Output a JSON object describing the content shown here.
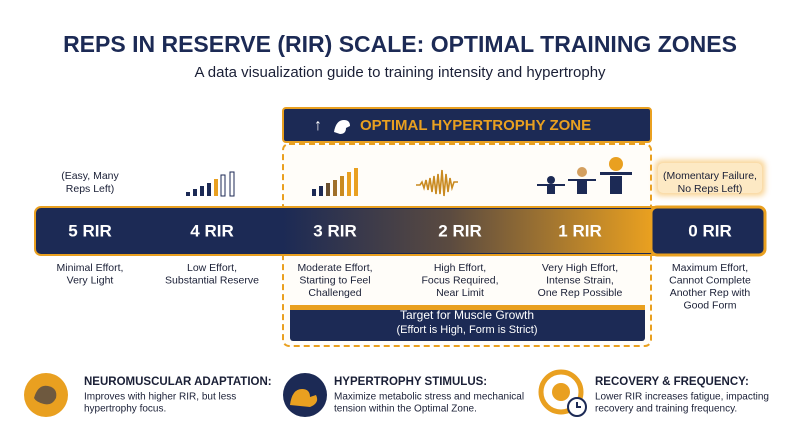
{
  "header": {
    "title": "REPS IN RESERVE (RIR) SCALE: OPTIMAL TRAINING ZONES",
    "subtitle": "A data visualization guide to training intensity and hypertrophy"
  },
  "zone": {
    "label": "OPTIMAL HYPERTROPHY ZONE"
  },
  "scale": [
    {
      "label": "5 RIR",
      "note": [
        "(Easy, Many",
        "Reps Left)"
      ],
      "description": [
        "Minimal Effort,",
        "Very Light"
      ]
    },
    {
      "label": "4 RIR",
      "description": [
        "Low Effort,",
        "Substantial Reserve"
      ]
    },
    {
      "label": "3 RIR",
      "description": [
        "Moderate Effort,",
        "Starting to Feel",
        "Challenged"
      ]
    },
    {
      "label": "2 RIR",
      "description": [
        "High Effort,",
        "Focus Required,",
        "Near Limit"
      ]
    },
    {
      "label": "1 RIR",
      "description": [
        "Very High Effort,",
        "Intense Strain,",
        "One Rep Possible"
      ]
    },
    {
      "label": "0 RIR",
      "note": [
        "(Momentary Failure,",
        "No Reps Left)"
      ],
      "description": [
        "Maximum Effort,",
        "Cannot Complete",
        "Another Rep with",
        "Good Form"
      ]
    }
  ],
  "target": {
    "title": "Target for Muscle Growth",
    "subtitle": "(Effort is High, Form is Strict)"
  },
  "info": [
    {
      "title": "NEUROMUSCULAR ADAPTATION:",
      "lines": [
        "Improves with higher RIR, but less",
        "hypertrophy focus."
      ]
    },
    {
      "title": "HYPERTROPHY STIMULUS:",
      "lines": [
        "Maximize metabolic stress and mechanical",
        "tension within the Optimal Zone."
      ]
    },
    {
      "title": "RECOVERY & FREQUENCY:",
      "lines": [
        "Lower RIR increases fatigue, impacting",
        "recovery and training frequency."
      ]
    }
  ]
}
